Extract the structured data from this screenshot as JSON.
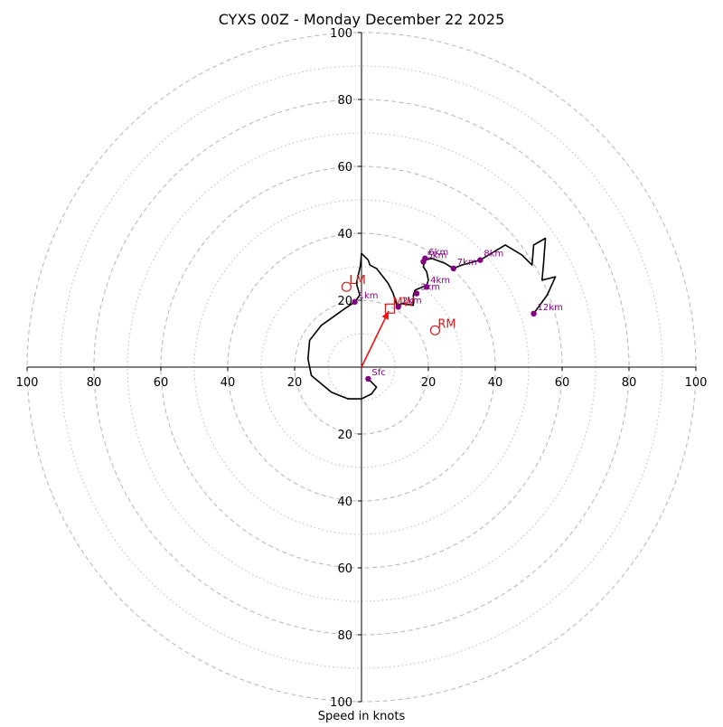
{
  "chart_data": {
    "type": "hodograph",
    "title": "CYXS 00Z - Monday December 22 2025",
    "xlabel": "Speed in knots",
    "units": "knots",
    "max_speed": 100,
    "major_rings": [
      20,
      40,
      60,
      80,
      100
    ],
    "minor_rings": [
      10,
      30,
      50,
      70,
      90
    ],
    "x_tick_labels": [
      "100",
      "80",
      "60",
      "40",
      "20",
      "20",
      "40",
      "60",
      "80",
      "100"
    ],
    "x_tick_values": [
      -100,
      -80,
      -60,
      -40,
      -20,
      20,
      40,
      60,
      80,
      100
    ],
    "y_tick_labels_up": [
      "20",
      "40",
      "60",
      "80",
      "100"
    ],
    "y_tick_values_up": [
      20,
      40,
      60,
      80,
      100
    ],
    "y_tick_labels_down": [
      "20",
      "40",
      "60",
      "80",
      "100"
    ],
    "y_tick_values_down": [
      -20,
      -40,
      -60,
      -80,
      -100
    ],
    "trace": [
      [
        2,
        -3.5
      ],
      [
        4.5,
        -6
      ],
      [
        3,
        -8
      ],
      [
        0,
        -9.5
      ],
      [
        -4,
        -9.5
      ],
      [
        -9,
        -7.5
      ],
      [
        -15,
        -2.5
      ],
      [
        -16,
        2.5
      ],
      [
        -15.5,
        8
      ],
      [
        -12,
        12.5
      ],
      [
        -5,
        17.5
      ],
      [
        -2,
        19.5
      ],
      [
        -0.5,
        21.5
      ],
      [
        -1.5,
        25
      ],
      [
        -0.3,
        30.5
      ],
      [
        0,
        34
      ],
      [
        2,
        32
      ],
      [
        2.5,
        30.5
      ],
      [
        4.5,
        29.5
      ],
      [
        8,
        25
      ],
      [
        9.5,
        22
      ],
      [
        10.5,
        18.5
      ],
      [
        12,
        19
      ],
      [
        15.5,
        18.5
      ],
      [
        15.5,
        21.5
      ],
      [
        16,
        23
      ],
      [
        19.5,
        24.5
      ],
      [
        20,
        26
      ],
      [
        19.5,
        28.5
      ],
      [
        18.5,
        30
      ],
      [
        19,
        32
      ],
      [
        21,
        32.5
      ],
      [
        25,
        31
      ],
      [
        27.5,
        29.5
      ],
      [
        30,
        30.5
      ],
      [
        35.5,
        32
      ],
      [
        38,
        33.5
      ],
      [
        43,
        36.5
      ],
      [
        48,
        33.5
      ],
      [
        51,
        30.5
      ],
      [
        51.5,
        36.5
      ],
      [
        55,
        38.5
      ],
      [
        54.5,
        31.5
      ],
      [
        54,
        26
      ],
      [
        58,
        27
      ],
      [
        55.5,
        21.5
      ],
      [
        51.5,
        16
      ]
    ],
    "height_markers": [
      {
        "label": "Sfc",
        "u": 2,
        "v": -3.5
      },
      {
        "label": "1km",
        "u": -2,
        "v": 19.5
      },
      {
        "label": "2km",
        "u": 11,
        "v": 18
      },
      {
        "label": "3km",
        "u": 16.5,
        "v": 22
      },
      {
        "label": "4km",
        "u": 19.5,
        "v": 24
      },
      {
        "label": "5km",
        "u": 18.5,
        "v": 31.5
      },
      {
        "label": "6km",
        "u": 19,
        "v": 32.5
      },
      {
        "label": "7km",
        "u": 27.5,
        "v": 29.5
      },
      {
        "label": "8km",
        "u": 35.5,
        "v": 32
      },
      {
        "label": "12km",
        "u": 51.5,
        "v": 16
      }
    ],
    "storm_motions": [
      {
        "label": "LM",
        "u": -4.5,
        "v": 24,
        "shape": "circle"
      },
      {
        "label": "RM",
        "u": 22,
        "v": 11,
        "shape": "circle"
      },
      {
        "label": "MW",
        "u": 8.5,
        "v": 17.5,
        "shape": "square"
      }
    ],
    "mean_wind_vector": {
      "u": 8.5,
      "v": 17.5
    },
    "colors": {
      "trace": "#000000",
      "marker": "#800080",
      "storm_motion": "#cc2020",
      "vector": "#ee1111",
      "ring": "#bbbbbb",
      "axis": "#000000"
    }
  }
}
